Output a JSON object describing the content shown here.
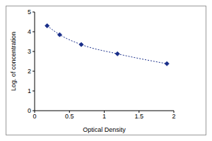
{
  "chart_data": {
    "type": "line",
    "x": [
      0.18,
      0.36,
      0.67,
      1.19,
      1.9
    ],
    "values": [
      4.3,
      3.85,
      3.35,
      2.88,
      2.38
    ],
    "xlabel": "Optical Density",
    "ylabel": "Log. of concentration",
    "xlim": [
      0,
      2
    ],
    "xticks": [
      0,
      0.5,
      1,
      1.5,
      2
    ],
    "ylim": [
      0,
      5
    ],
    "yticks": [
      0,
      1,
      2,
      3,
      4,
      5
    ],
    "color": "#1a2f8a",
    "marker": "diamond",
    "line_style": "dotted",
    "grid": false
  }
}
